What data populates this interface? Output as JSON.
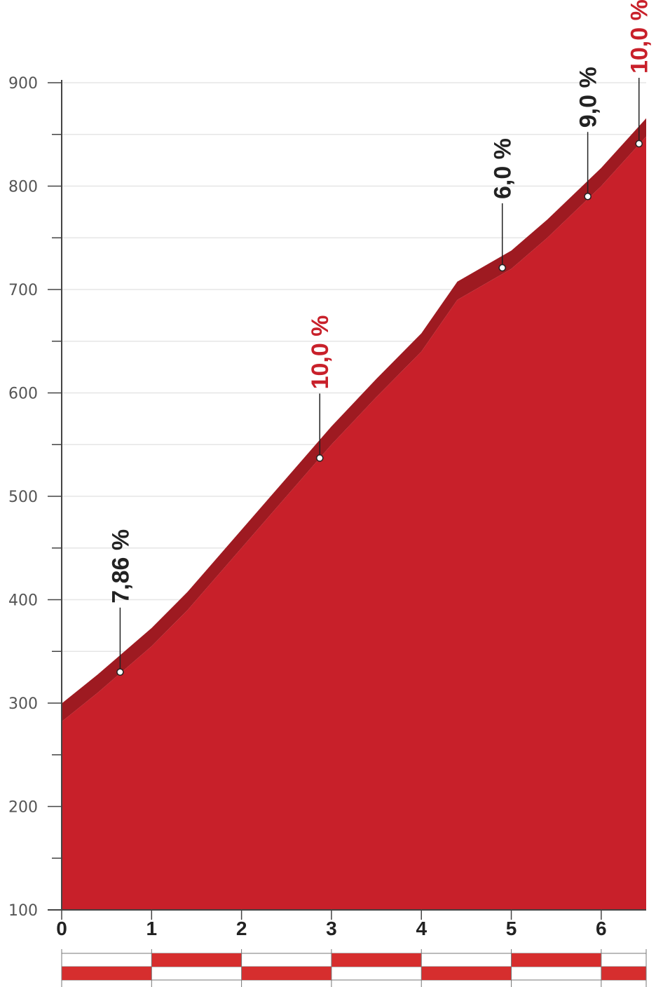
{
  "chart_data": {
    "type": "area",
    "x": [
      0,
      1,
      2,
      3,
      4,
      5,
      6,
      6.5
    ],
    "xlim": [
      0,
      6.5
    ],
    "ylim": [
      100,
      900
    ],
    "y_ticks": [
      100,
      200,
      300,
      400,
      500,
      600,
      700,
      800,
      900
    ],
    "x_ticks": [
      0,
      1,
      2,
      3,
      4,
      5,
      6
    ],
    "profile": [
      {
        "x": 0,
        "y": 282
      },
      {
        "x": 0.4,
        "y": 310
      },
      {
        "x": 1,
        "y": 355
      },
      {
        "x": 1.4,
        "y": 390
      },
      {
        "x": 2,
        "y": 450
      },
      {
        "x": 2.5,
        "y": 500
      },
      {
        "x": 3,
        "y": 550
      },
      {
        "x": 3.5,
        "y": 596
      },
      {
        "x": 4,
        "y": 640
      },
      {
        "x": 4.4,
        "y": 690
      },
      {
        "x": 5,
        "y": 720
      },
      {
        "x": 5.4,
        "y": 750
      },
      {
        "x": 6,
        "y": 800
      },
      {
        "x": 6.5,
        "y": 848
      }
    ],
    "markers": [
      {
        "x": 0.65,
        "y": 330,
        "label": "7,86 %",
        "color": "#222222"
      },
      {
        "x": 2.87,
        "y": 537,
        "label": "10,0 %",
        "color": "#c8202a"
      },
      {
        "x": 4.9,
        "y": 721,
        "label": "6,0 %",
        "color": "#222222"
      },
      {
        "x": 5.85,
        "y": 790,
        "label": "9,0 %",
        "color": "#222222"
      },
      {
        "x": 6.42,
        "y": 841,
        "label": "10,0 %",
        "color": "#c8202a"
      }
    ],
    "grid": true,
    "colors": {
      "fill": "#c8202a",
      "edge": "#9e1a21",
      "axis": "#444444",
      "grid": "#e6e6e6",
      "label_dark": "#222222",
      "label_red": "#c8202a",
      "band": "#d62e2e"
    },
    "km_band": {
      "segments": [
        0,
        1,
        2,
        3,
        4,
        5,
        6,
        6.5
      ],
      "pattern": [
        "bottom",
        "top",
        "bottom",
        "top",
        "bottom",
        "top",
        "bottom"
      ]
    }
  }
}
